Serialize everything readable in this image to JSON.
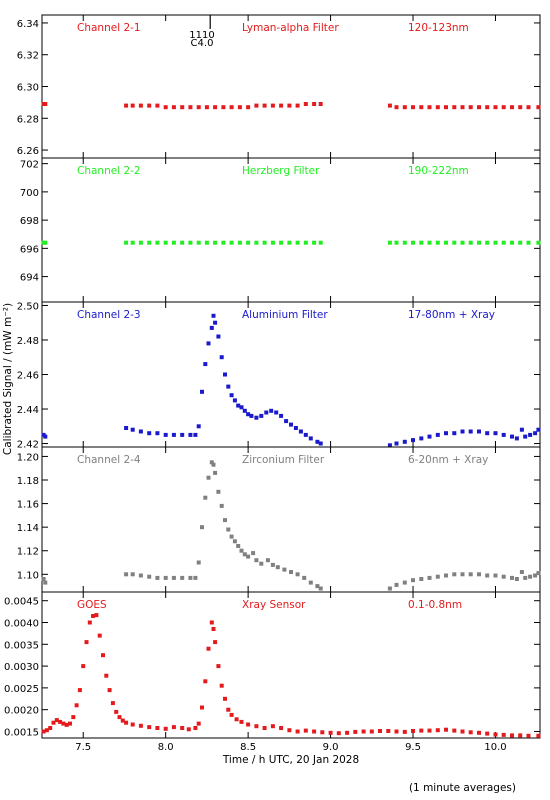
{
  "x_axis": {
    "label": "Time / h UTC, 20 Jan 2028",
    "min": 7.25,
    "max": 10.27,
    "ticks": [
      7.5,
      8.0,
      8.5,
      9.0,
      9.5,
      10.0
    ],
    "tick_labels": [
      "7.5",
      "8.0",
      "8.5",
      "9.0",
      "9.5",
      "10.0"
    ]
  },
  "y_axis_label": "Calibrated Signal / (mW m⁻²)",
  "footer_note": "(1 minute averages)",
  "marker_annotation": {
    "line1": "1110",
    "line2": "C4.0",
    "x": 8.27
  },
  "chart_data": [
    {
      "type": "scatter",
      "name": "Channel 2-1",
      "filter": "Lyman-alpha Filter",
      "band": "120-123nm",
      "color": "#e41a1c",
      "ylim": [
        6.255,
        6.345
      ],
      "yticks": [
        6.26,
        6.28,
        6.3,
        6.32,
        6.34
      ],
      "ytick_labels": [
        "6.26",
        "6.28",
        "6.30",
        "6.32",
        "6.34"
      ],
      "points": [
        [
          7.26,
          6.289
        ],
        [
          7.27,
          6.289
        ],
        [
          7.76,
          6.288
        ],
        [
          7.8,
          6.288
        ],
        [
          7.85,
          6.288
        ],
        [
          7.9,
          6.288
        ],
        [
          7.95,
          6.288
        ],
        [
          8.0,
          6.287
        ],
        [
          8.05,
          6.287
        ],
        [
          8.1,
          6.287
        ],
        [
          8.15,
          6.287
        ],
        [
          8.2,
          6.287
        ],
        [
          8.25,
          6.287
        ],
        [
          8.3,
          6.287
        ],
        [
          8.35,
          6.287
        ],
        [
          8.4,
          6.287
        ],
        [
          8.45,
          6.287
        ],
        [
          8.5,
          6.287
        ],
        [
          8.55,
          6.288
        ],
        [
          8.6,
          6.288
        ],
        [
          8.65,
          6.288
        ],
        [
          8.7,
          6.288
        ],
        [
          8.75,
          6.288
        ],
        [
          8.8,
          6.288
        ],
        [
          8.85,
          6.289
        ],
        [
          8.9,
          6.289
        ],
        [
          8.94,
          6.289
        ],
        [
          9.36,
          6.288
        ],
        [
          9.4,
          6.287
        ],
        [
          9.45,
          6.287
        ],
        [
          9.5,
          6.287
        ],
        [
          9.55,
          6.287
        ],
        [
          9.6,
          6.287
        ],
        [
          9.65,
          6.287
        ],
        [
          9.7,
          6.287
        ],
        [
          9.75,
          6.287
        ],
        [
          9.8,
          6.287
        ],
        [
          9.85,
          6.287
        ],
        [
          9.9,
          6.287
        ],
        [
          9.95,
          6.287
        ],
        [
          10.0,
          6.287
        ],
        [
          10.05,
          6.287
        ],
        [
          10.1,
          6.287
        ],
        [
          10.15,
          6.287
        ],
        [
          10.2,
          6.287
        ],
        [
          10.26,
          6.287
        ]
      ]
    },
    {
      "type": "scatter",
      "name": "Channel 2-2",
      "filter": "Herzberg Filter",
      "band": "190-222nm",
      "color": "#22ee22",
      "ylim": [
        692.2,
        702.4
      ],
      "yticks": [
        694,
        696,
        698,
        700,
        702
      ],
      "ytick_labels": [
        "694",
        "696",
        "698",
        "700",
        "702"
      ],
      "points": [
        [
          7.26,
          696.4
        ],
        [
          7.27,
          696.4
        ],
        [
          7.76,
          696.4
        ],
        [
          7.8,
          696.4
        ],
        [
          7.85,
          696.4
        ],
        [
          7.9,
          696.4
        ],
        [
          7.95,
          696.4
        ],
        [
          8.0,
          696.4
        ],
        [
          8.05,
          696.4
        ],
        [
          8.1,
          696.4
        ],
        [
          8.15,
          696.4
        ],
        [
          8.2,
          696.4
        ],
        [
          8.25,
          696.4
        ],
        [
          8.3,
          696.4
        ],
        [
          8.35,
          696.4
        ],
        [
          8.4,
          696.4
        ],
        [
          8.45,
          696.4
        ],
        [
          8.5,
          696.4
        ],
        [
          8.55,
          696.4
        ],
        [
          8.6,
          696.4
        ],
        [
          8.65,
          696.4
        ],
        [
          8.7,
          696.4
        ],
        [
          8.75,
          696.4
        ],
        [
          8.8,
          696.4
        ],
        [
          8.85,
          696.4
        ],
        [
          8.9,
          696.4
        ],
        [
          8.94,
          696.4
        ],
        [
          9.36,
          696.4
        ],
        [
          9.4,
          696.4
        ],
        [
          9.45,
          696.4
        ],
        [
          9.5,
          696.4
        ],
        [
          9.55,
          696.4
        ],
        [
          9.6,
          696.4
        ],
        [
          9.65,
          696.4
        ],
        [
          9.7,
          696.4
        ],
        [
          9.75,
          696.4
        ],
        [
          9.8,
          696.4
        ],
        [
          9.85,
          696.4
        ],
        [
          9.9,
          696.4
        ],
        [
          9.95,
          696.4
        ],
        [
          10.0,
          696.4
        ],
        [
          10.05,
          696.4
        ],
        [
          10.1,
          696.4
        ],
        [
          10.15,
          696.4
        ],
        [
          10.2,
          696.4
        ],
        [
          10.26,
          696.4
        ]
      ]
    },
    {
      "type": "scatter",
      "name": "Channel 2-3",
      "filter": "Aluminium Filter",
      "band": "17-80nm + Xray",
      "color": "#1a1acc",
      "ylim": [
        2.418,
        2.502
      ],
      "yticks": [
        2.42,
        2.44,
        2.46,
        2.48,
        2.5
      ],
      "ytick_labels": [
        "2.42",
        "2.44",
        "2.46",
        "2.48",
        "2.50"
      ],
      "points": [
        [
          7.26,
          2.425
        ],
        [
          7.27,
          2.424
        ],
        [
          7.76,
          2.429
        ],
        [
          7.8,
          2.428
        ],
        [
          7.85,
          2.427
        ],
        [
          7.9,
          2.426
        ],
        [
          7.95,
          2.426
        ],
        [
          8.0,
          2.425
        ],
        [
          8.05,
          2.425
        ],
        [
          8.1,
          2.425
        ],
        [
          8.15,
          2.425
        ],
        [
          8.18,
          2.425
        ],
        [
          8.2,
          2.43
        ],
        [
          8.22,
          2.45
        ],
        [
          8.24,
          2.466
        ],
        [
          8.26,
          2.478
        ],
        [
          8.28,
          2.487
        ],
        [
          8.29,
          2.494
        ],
        [
          8.3,
          2.49
        ],
        [
          8.32,
          2.482
        ],
        [
          8.34,
          2.47
        ],
        [
          8.36,
          2.46
        ],
        [
          8.38,
          2.453
        ],
        [
          8.4,
          2.448
        ],
        [
          8.42,
          2.445
        ],
        [
          8.44,
          2.442
        ],
        [
          8.46,
          2.441
        ],
        [
          8.48,
          2.439
        ],
        [
          8.5,
          2.437
        ],
        [
          8.52,
          2.436
        ],
        [
          8.55,
          2.435
        ],
        [
          8.58,
          2.436
        ],
        [
          8.61,
          2.438
        ],
        [
          8.64,
          2.439
        ],
        [
          8.67,
          2.438
        ],
        [
          8.7,
          2.436
        ],
        [
          8.73,
          2.433
        ],
        [
          8.76,
          2.431
        ],
        [
          8.79,
          2.429
        ],
        [
          8.82,
          2.427
        ],
        [
          8.85,
          2.425
        ],
        [
          8.88,
          2.423
        ],
        [
          8.92,
          2.421
        ],
        [
          8.94,
          2.42
        ],
        [
          9.36,
          2.419
        ],
        [
          9.4,
          2.42
        ],
        [
          9.45,
          2.421
        ],
        [
          9.5,
          2.422
        ],
        [
          9.55,
          2.423
        ],
        [
          9.6,
          2.424
        ],
        [
          9.65,
          2.425
        ],
        [
          9.7,
          2.426
        ],
        [
          9.75,
          2.426
        ],
        [
          9.8,
          2.427
        ],
        [
          9.85,
          2.427
        ],
        [
          9.9,
          2.427
        ],
        [
          9.95,
          2.426
        ],
        [
          10.0,
          2.426
        ],
        [
          10.05,
          2.425
        ],
        [
          10.1,
          2.424
        ],
        [
          10.13,
          2.423
        ],
        [
          10.16,
          2.428
        ],
        [
          10.18,
          2.424
        ],
        [
          10.21,
          2.425
        ],
        [
          10.24,
          2.426
        ],
        [
          10.26,
          2.428
        ]
      ]
    },
    {
      "type": "scatter",
      "name": "Channel 2-4",
      "filter": "Zirconium Filter",
      "band": "6-20nm + Xray",
      "color": "#808080",
      "ylim": [
        1.085,
        1.208
      ],
      "yticks": [
        1.1,
        1.12,
        1.14,
        1.16,
        1.18,
        1.2
      ],
      "ytick_labels": [
        "1.10",
        "1.12",
        "1.14",
        "1.16",
        "1.18",
        "1.20"
      ],
      "points": [
        [
          7.26,
          1.096
        ],
        [
          7.27,
          1.093
        ],
        [
          7.76,
          1.1
        ],
        [
          7.8,
          1.1
        ],
        [
          7.85,
          1.099
        ],
        [
          7.9,
          1.098
        ],
        [
          7.95,
          1.097
        ],
        [
          8.0,
          1.097
        ],
        [
          8.05,
          1.097
        ],
        [
          8.1,
          1.097
        ],
        [
          8.15,
          1.097
        ],
        [
          8.18,
          1.097
        ],
        [
          8.2,
          1.11
        ],
        [
          8.22,
          1.14
        ],
        [
          8.24,
          1.165
        ],
        [
          8.26,
          1.182
        ],
        [
          8.28,
          1.195
        ],
        [
          8.29,
          1.193
        ],
        [
          8.3,
          1.186
        ],
        [
          8.32,
          1.17
        ],
        [
          8.34,
          1.158
        ],
        [
          8.36,
          1.146
        ],
        [
          8.38,
          1.138
        ],
        [
          8.4,
          1.132
        ],
        [
          8.42,
          1.128
        ],
        [
          8.44,
          1.124
        ],
        [
          8.46,
          1.12
        ],
        [
          8.48,
          1.117
        ],
        [
          8.5,
          1.115
        ],
        [
          8.53,
          1.118
        ],
        [
          8.55,
          1.112
        ],
        [
          8.58,
          1.109
        ],
        [
          8.62,
          1.112
        ],
        [
          8.65,
          1.108
        ],
        [
          8.68,
          1.106
        ],
        [
          8.72,
          1.104
        ],
        [
          8.76,
          1.102
        ],
        [
          8.8,
          1.1
        ],
        [
          8.84,
          1.097
        ],
        [
          8.88,
          1.093
        ],
        [
          8.92,
          1.09
        ],
        [
          8.94,
          1.088
        ],
        [
          9.36,
          1.088
        ],
        [
          9.4,
          1.091
        ],
        [
          9.45,
          1.093
        ],
        [
          9.5,
          1.095
        ],
        [
          9.55,
          1.096
        ],
        [
          9.6,
          1.097
        ],
        [
          9.65,
          1.098
        ],
        [
          9.7,
          1.099
        ],
        [
          9.75,
          1.1
        ],
        [
          9.8,
          1.1
        ],
        [
          9.85,
          1.1
        ],
        [
          9.9,
          1.1
        ],
        [
          9.95,
          1.099
        ],
        [
          10.0,
          1.099
        ],
        [
          10.05,
          1.098
        ],
        [
          10.1,
          1.097
        ],
        [
          10.13,
          1.096
        ],
        [
          10.16,
          1.102
        ],
        [
          10.18,
          1.097
        ],
        [
          10.21,
          1.098
        ],
        [
          10.24,
          1.099
        ],
        [
          10.26,
          1.101
        ]
      ]
    },
    {
      "type": "scatter",
      "name": "GOES",
      "filter": "Xray Sensor",
      "band": "0.1-0.8nm",
      "color": "#e41a1c",
      "ylim": [
        0.00135,
        0.0047
      ],
      "yticks": [
        0.0015,
        0.002,
        0.0025,
        0.003,
        0.0035,
        0.004,
        0.0045
      ],
      "ytick_labels": [
        "0.0015",
        "0.0020",
        "0.0025",
        "0.0030",
        "0.0035",
        "0.0040",
        "0.0045"
      ],
      "points": [
        [
          7.26,
          0.0015
        ],
        [
          7.28,
          0.00153
        ],
        [
          7.3,
          0.00158
        ],
        [
          7.32,
          0.0017
        ],
        [
          7.34,
          0.00176
        ],
        [
          7.36,
          0.00172
        ],
        [
          7.38,
          0.00168
        ],
        [
          7.4,
          0.00165
        ],
        [
          7.42,
          0.00168
        ],
        [
          7.44,
          0.00183
        ],
        [
          7.46,
          0.0021
        ],
        [
          7.48,
          0.00245
        ],
        [
          7.5,
          0.003
        ],
        [
          7.52,
          0.00355
        ],
        [
          7.54,
          0.004
        ],
        [
          7.56,
          0.00415
        ],
        [
          7.58,
          0.00417
        ],
        [
          7.6,
          0.0037
        ],
        [
          7.62,
          0.00325
        ],
        [
          7.64,
          0.00278
        ],
        [
          7.66,
          0.00245
        ],
        [
          7.68,
          0.00215
        ],
        [
          7.7,
          0.00195
        ],
        [
          7.72,
          0.00183
        ],
        [
          7.74,
          0.00175
        ],
        [
          7.76,
          0.0017
        ],
        [
          7.8,
          0.00166
        ],
        [
          7.85,
          0.00163
        ],
        [
          7.9,
          0.0016
        ],
        [
          7.95,
          0.00158
        ],
        [
          8.0,
          0.00156
        ],
        [
          8.05,
          0.0016
        ],
        [
          8.1,
          0.00158
        ],
        [
          8.14,
          0.00155
        ],
        [
          8.18,
          0.00158
        ],
        [
          8.2,
          0.00168
        ],
        [
          8.22,
          0.00205
        ],
        [
          8.24,
          0.00265
        ],
        [
          8.26,
          0.0034
        ],
        [
          8.28,
          0.004
        ],
        [
          8.29,
          0.00385
        ],
        [
          8.3,
          0.00355
        ],
        [
          8.32,
          0.003
        ],
        [
          8.34,
          0.00255
        ],
        [
          8.36,
          0.00225
        ],
        [
          8.38,
          0.002
        ],
        [
          8.4,
          0.00188
        ],
        [
          8.43,
          0.00178
        ],
        [
          8.46,
          0.00172
        ],
        [
          8.5,
          0.00166
        ],
        [
          8.55,
          0.00162
        ],
        [
          8.6,
          0.00158
        ],
        [
          8.65,
          0.00162
        ],
        [
          8.7,
          0.00158
        ],
        [
          8.75,
          0.00153
        ],
        [
          8.8,
          0.0015
        ],
        [
          8.85,
          0.00152
        ],
        [
          8.9,
          0.0015
        ],
        [
          8.95,
          0.00148
        ],
        [
          9.0,
          0.00147
        ],
        [
          9.05,
          0.00146
        ],
        [
          9.1,
          0.00147
        ],
        [
          9.15,
          0.00149
        ],
        [
          9.2,
          0.0015
        ],
        [
          9.25,
          0.0015
        ],
        [
          9.3,
          0.00151
        ],
        [
          9.35,
          0.00151
        ],
        [
          9.4,
          0.0015
        ],
        [
          9.45,
          0.00149
        ],
        [
          9.5,
          0.00151
        ],
        [
          9.55,
          0.00152
        ],
        [
          9.6,
          0.00152
        ],
        [
          9.65,
          0.00153
        ],
        [
          9.7,
          0.00154
        ],
        [
          9.75,
          0.00152
        ],
        [
          9.8,
          0.0015
        ],
        [
          9.85,
          0.00148
        ],
        [
          9.9,
          0.00147
        ],
        [
          9.95,
          0.00145
        ],
        [
          10.0,
          0.00143
        ],
        [
          10.05,
          0.00142
        ],
        [
          10.1,
          0.00141
        ],
        [
          10.15,
          0.00141
        ],
        [
          10.2,
          0.0014
        ],
        [
          10.26,
          0.0014
        ]
      ]
    }
  ]
}
